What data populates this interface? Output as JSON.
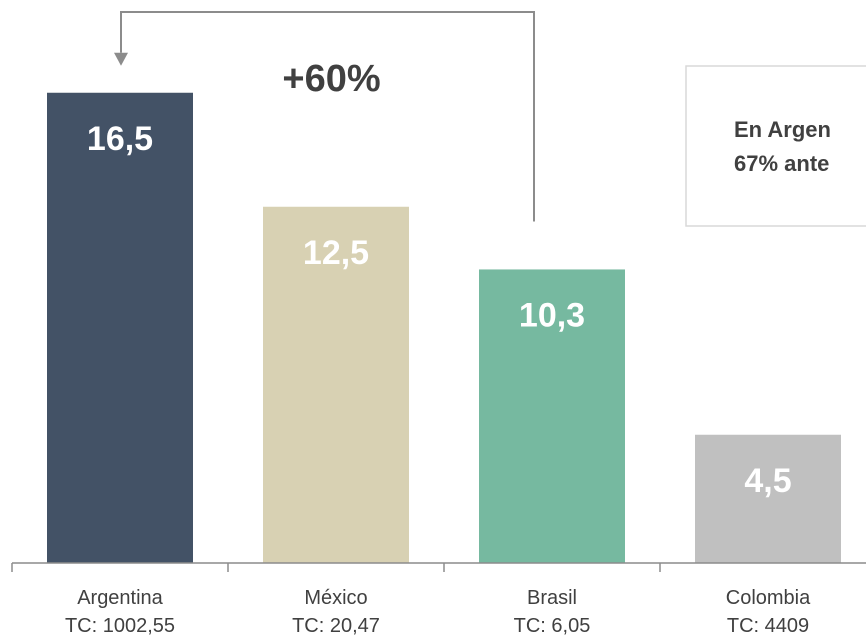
{
  "chart_data": {
    "type": "bar",
    "categories": [
      "Argentina",
      "México",
      "Brasil",
      "Colombia"
    ],
    "category_sublabels": [
      "TC: 1002,55",
      "TC: 20,47",
      "TC: 6,05",
      "TC: 4409"
    ],
    "values": [
      16.5,
      12.5,
      10.3,
      4.5
    ],
    "value_labels": [
      "16,5",
      "12,5",
      "10,3",
      "4,5"
    ],
    "bar_colors": [
      "#435266",
      "#d8d1b3",
      "#76b9a0",
      "#c0c0c0"
    ],
    "value_label_color": "#ffffff",
    "ylim": [
      0,
      18
    ],
    "grid": false,
    "title": "",
    "xlabel": "",
    "ylabel": "",
    "annotations": {
      "comparison_label": "+60%",
      "comparison_from": "Brasil",
      "comparison_to": "Argentina",
      "note_text_lines": [
        "En Argen",
        "67% ante"
      ]
    }
  },
  "colors": {
    "axis": "#8c8c8c",
    "arrow": "#8c8c8c",
    "annotation_text": "#404040",
    "category_text": "#404040",
    "note_border": "#d9d9d9",
    "note_text": "#404040"
  }
}
